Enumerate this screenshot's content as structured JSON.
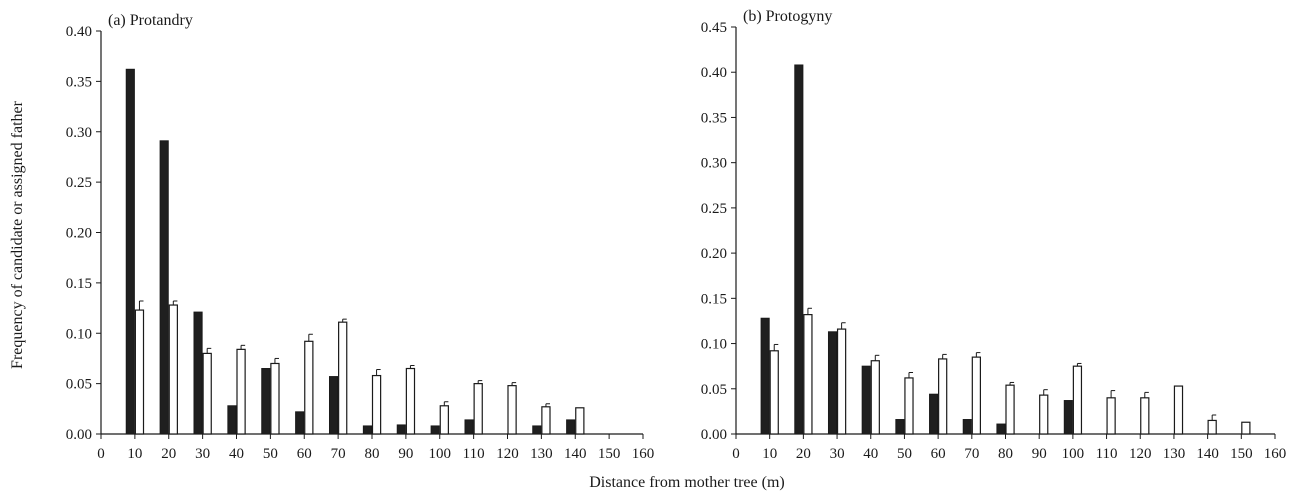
{
  "figure": {
    "ylabel": "Frequency of candidate or assigned father",
    "xlabel": "Distance from mother tree (m)"
  },
  "colors": {
    "filled": "#1f1f1f",
    "open": "#ffffff",
    "stroke": "#1a1a1a"
  },
  "chart_data": [
    {
      "type": "bar",
      "title": "(a) Protandry",
      "xlabel": "Distance from mother tree (m)",
      "ylabel": "Frequency of candidate or assigned father",
      "xlim": [
        0,
        160
      ],
      "ylim": [
        0,
        0.4
      ],
      "xticks": [
        0,
        10,
        20,
        30,
        40,
        50,
        60,
        70,
        80,
        90,
        100,
        110,
        120,
        130,
        140,
        150,
        160
      ],
      "yticks": [
        0.0,
        0.05,
        0.1,
        0.15,
        0.2,
        0.25,
        0.3,
        0.35,
        0.4
      ],
      "ytick_labels": [
        "0.00",
        "0.05",
        "0.10",
        "0.15",
        "0.20",
        "0.25",
        "0.30",
        "0.35",
        "0.40"
      ],
      "categories": [
        10,
        20,
        30,
        40,
        50,
        60,
        70,
        80,
        90,
        100,
        110,
        120,
        130,
        140
      ],
      "series": [
        {
          "style": "filled",
          "values": [
            0.362,
            0.291,
            0.121,
            0.028,
            0.065,
            0.022,
            0.057,
            0.008,
            0.009,
            0.008,
            0.014,
            0.0,
            0.008,
            0.014
          ]
        },
        {
          "style": "open",
          "values": [
            0.123,
            0.128,
            0.08,
            0.084,
            0.07,
            0.092,
            0.111,
            0.058,
            0.065,
            0.028,
            0.05,
            0.048,
            0.027,
            0.026
          ],
          "errors": [
            0.009,
            0.004,
            0.005,
            0.004,
            0.005,
            0.007,
            0.003,
            0.006,
            0.003,
            0.004,
            0.003,
            0.003,
            0.003,
            0.0
          ]
        }
      ]
    },
    {
      "type": "bar",
      "title": "(b) Protogyny",
      "xlabel": "Distance from mother tree (m)",
      "ylabel": "",
      "xlim": [
        0,
        160
      ],
      "ylim": [
        0,
        0.45
      ],
      "xticks": [
        0,
        10,
        20,
        30,
        40,
        50,
        60,
        70,
        80,
        90,
        100,
        110,
        120,
        130,
        140,
        150,
        160
      ],
      "yticks": [
        0.0,
        0.05,
        0.1,
        0.15,
        0.2,
        0.25,
        0.3,
        0.35,
        0.4,
        0.45
      ],
      "ytick_labels": [
        "0.00",
        "0.05",
        "0.10",
        "0.15",
        "0.20",
        "0.25",
        "0.30",
        "0.35",
        "0.40",
        "0.45"
      ],
      "categories": [
        10,
        20,
        30,
        40,
        50,
        60,
        70,
        80,
        90,
        100,
        110,
        120,
        130,
        140,
        150
      ],
      "series": [
        {
          "style": "filled",
          "values": [
            0.128,
            0.408,
            0.113,
            0.075,
            0.016,
            0.044,
            0.016,
            0.011,
            0.0,
            0.037,
            0.0,
            0.0,
            0.0,
            0.0,
            0.0
          ]
        },
        {
          "style": "open",
          "values": [
            0.092,
            0.132,
            0.116,
            0.081,
            0.062,
            0.083,
            0.085,
            0.054,
            0.043,
            0.075,
            0.04,
            0.04,
            0.053,
            0.015,
            0.013
          ],
          "errors": [
            0.007,
            0.007,
            0.007,
            0.006,
            0.006,
            0.005,
            0.005,
            0.003,
            0.006,
            0.003,
            0.008,
            0.006,
            0.0,
            0.006,
            0.0
          ]
        }
      ]
    }
  ]
}
